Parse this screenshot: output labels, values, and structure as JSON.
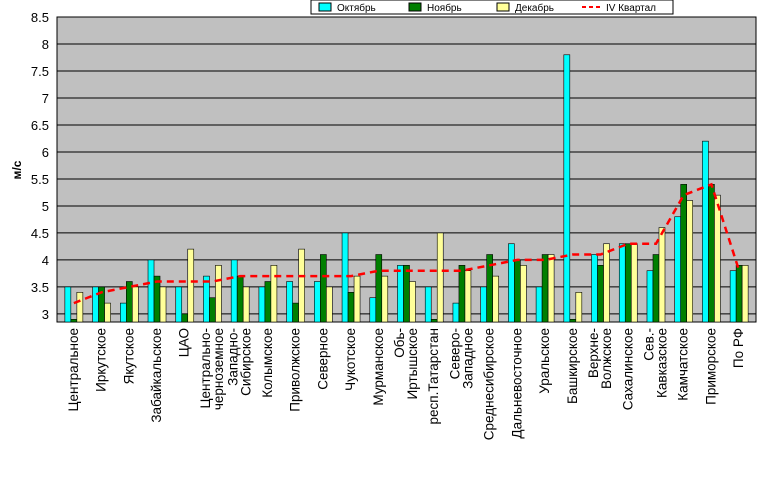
{
  "colors": {
    "october": "#00ffff",
    "november": "#007f00",
    "december": "#ffff99",
    "quarter": "#ff0000",
    "plot_bg": "#c0c0c0",
    "grid": "#000000"
  },
  "chart_data": {
    "type": "bar",
    "ylabel": "м/с",
    "ylim": [
      2.85,
      8.5
    ],
    "yticks": [
      "3",
      "3.5",
      "4",
      "4.5",
      "5",
      "5.5",
      "6",
      "6.5",
      "7",
      "7.5",
      "8",
      "8.5"
    ],
    "grid": true,
    "legend_position": "top-right",
    "categories": [
      "Центральное",
      "Иркутское",
      "Якутское",
      "Забайкальское",
      "ЦАО",
      "Центрально-черноземное",
      "Западно-Сибирское",
      "Колымское",
      "Приволжское",
      "Северное",
      "Чукотское",
      "Мурманское",
      "Обь-Иртышское",
      "респ.Татарстан",
      "Северо-Западное",
      "Среднесибирское",
      "Дальневосточное",
      "Уральское",
      "Башкирское",
      "Верхне-Волжское",
      "Сахалинское",
      "Сев.-Кавказское",
      "Камчатское",
      "Приморское",
      "По РФ"
    ],
    "category_lines": [
      [
        "Центральное"
      ],
      [
        "Иркутское"
      ],
      [
        "Якутское"
      ],
      [
        "Забайкальское"
      ],
      [
        "ЦАО"
      ],
      [
        "Центрально-",
        "черноземное"
      ],
      [
        "Западно-",
        "Сибирское"
      ],
      [
        "Колымское"
      ],
      [
        "Приволжское"
      ],
      [
        "Северное"
      ],
      [
        "Чукотское"
      ],
      [
        "Мурманское"
      ],
      [
        "Обь-",
        "Иртышское"
      ],
      [
        "респ.Татарстан"
      ],
      [
        "Северо-",
        "Западное"
      ],
      [
        "Среднесибирское"
      ],
      [
        "Дальневосточное"
      ],
      [
        "Уральское"
      ],
      [
        "Башкирское"
      ],
      [
        "Верхне-",
        "Волжское"
      ],
      [
        "Сахалинское"
      ],
      [
        "Сев.-",
        "Кавказское"
      ],
      [
        "Камчатское"
      ],
      [
        "Приморское"
      ],
      [
        "По РФ"
      ]
    ],
    "series": [
      {
        "name": "Октябрь",
        "type": "bar",
        "values": [
          3.5,
          3.5,
          3.2,
          4.0,
          3.5,
          3.7,
          4.0,
          3.5,
          3.6,
          3.6,
          4.5,
          3.3,
          3.9,
          3.5,
          3.2,
          3.5,
          4.3,
          3.5,
          7.8,
          4.1,
          4.3,
          3.8,
          4.8,
          6.2,
          3.8
        ]
      },
      {
        "name": "Ноябрь",
        "type": "bar",
        "values": [
          2.9,
          3.5,
          3.6,
          3.7,
          3.0,
          3.3,
          3.7,
          3.6,
          3.2,
          4.1,
          3.4,
          4.1,
          3.9,
          2.9,
          3.9,
          4.1,
          4.0,
          4.1,
          2.9,
          3.9,
          4.3,
          4.1,
          5.4,
          5.4,
          3.9
        ]
      },
      {
        "name": "Декабрь",
        "type": "bar",
        "values": [
          3.4,
          3.2,
          3.5,
          3.5,
          4.2,
          3.9,
          3.5,
          3.9,
          4.2,
          3.5,
          3.7,
          3.7,
          3.6,
          4.5,
          3.8,
          3.7,
          3.9,
          4.1,
          3.4,
          4.3,
          4.3,
          4.6,
          5.1,
          5.2,
          3.9
        ]
      },
      {
        "name": "IV Квартал",
        "type": "line",
        "values": [
          3.2,
          3.4,
          3.5,
          3.6,
          3.6,
          3.6,
          3.7,
          3.7,
          3.7,
          3.7,
          3.7,
          3.8,
          3.8,
          3.8,
          3.8,
          3.9,
          4.0,
          4.0,
          4.1,
          4.1,
          4.3,
          4.3,
          5.2,
          5.4,
          3.8
        ]
      }
    ]
  }
}
